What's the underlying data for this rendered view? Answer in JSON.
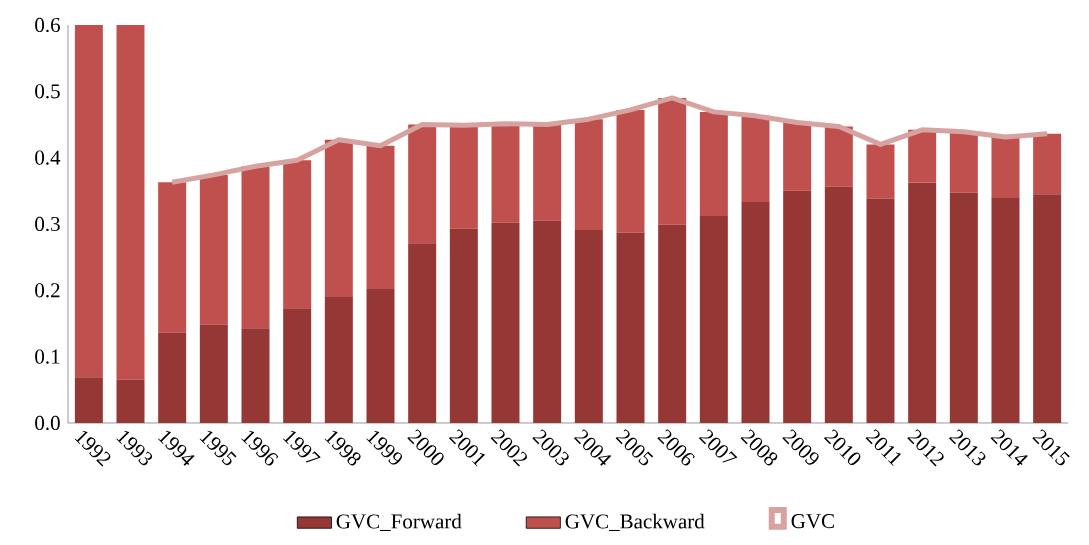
{
  "chart_data": {
    "type": "bar",
    "stacked": true,
    "categories": [
      "1992",
      "1993",
      "1994",
      "1995",
      "1996",
      "1997",
      "1998",
      "1999",
      "2000",
      "2001",
      "2002",
      "2003",
      "2004",
      "2005",
      "2006",
      "2007",
      "2008",
      "2009",
      "2010",
      "2011",
      "2012",
      "2013",
      "2014",
      "2015"
    ],
    "series": [
      {
        "name": "GVC_Forward",
        "color": "#953735",
        "values": [
          0.069,
          0.065,
          0.136,
          0.148,
          0.143,
          0.173,
          0.19,
          0.202,
          0.271,
          0.293,
          0.302,
          0.305,
          0.291,
          0.287,
          0.299,
          0.312,
          0.333,
          0.35,
          0.356,
          0.338,
          0.362,
          0.347,
          0.339,
          0.345
        ]
      },
      {
        "name": "GVC_Backward",
        "color": "#c0504d",
        "values": [
          0.531,
          0.535,
          0.227,
          0.226,
          0.244,
          0.223,
          0.237,
          0.216,
          0.179,
          0.156,
          0.149,
          0.145,
          0.167,
          0.185,
          0.191,
          0.157,
          0.13,
          0.103,
          0.091,
          0.082,
          0.08,
          0.092,
          0.092,
          0.091
        ]
      },
      {
        "name": "GVC",
        "type": "line",
        "color": "#d6a3a1",
        "values": [
          null,
          null,
          0.363,
          0.374,
          0.387,
          0.396,
          0.427,
          0.418,
          0.45,
          0.449,
          0.451,
          0.45,
          0.458,
          0.472,
          0.49,
          0.469,
          0.463,
          0.453,
          0.447,
          0.42,
          0.442,
          0.439,
          0.431,
          0.436
        ]
      }
    ],
    "ylim": [
      0,
      0.6
    ],
    "yticks": [
      {
        "value": 0,
        "label": "0.0"
      },
      {
        "value": 0.1,
        "label": "0.1"
      },
      {
        "value": 0.2,
        "label": "0.2"
      },
      {
        "value": 0.3,
        "label": "0.3"
      },
      {
        "value": 0.4,
        "label": "0.4"
      },
      {
        "value": 0.5,
        "label": "0.5"
      },
      {
        "value": 0.6,
        "label": "0.6"
      }
    ],
    "grid": false,
    "legend": "bottom"
  }
}
